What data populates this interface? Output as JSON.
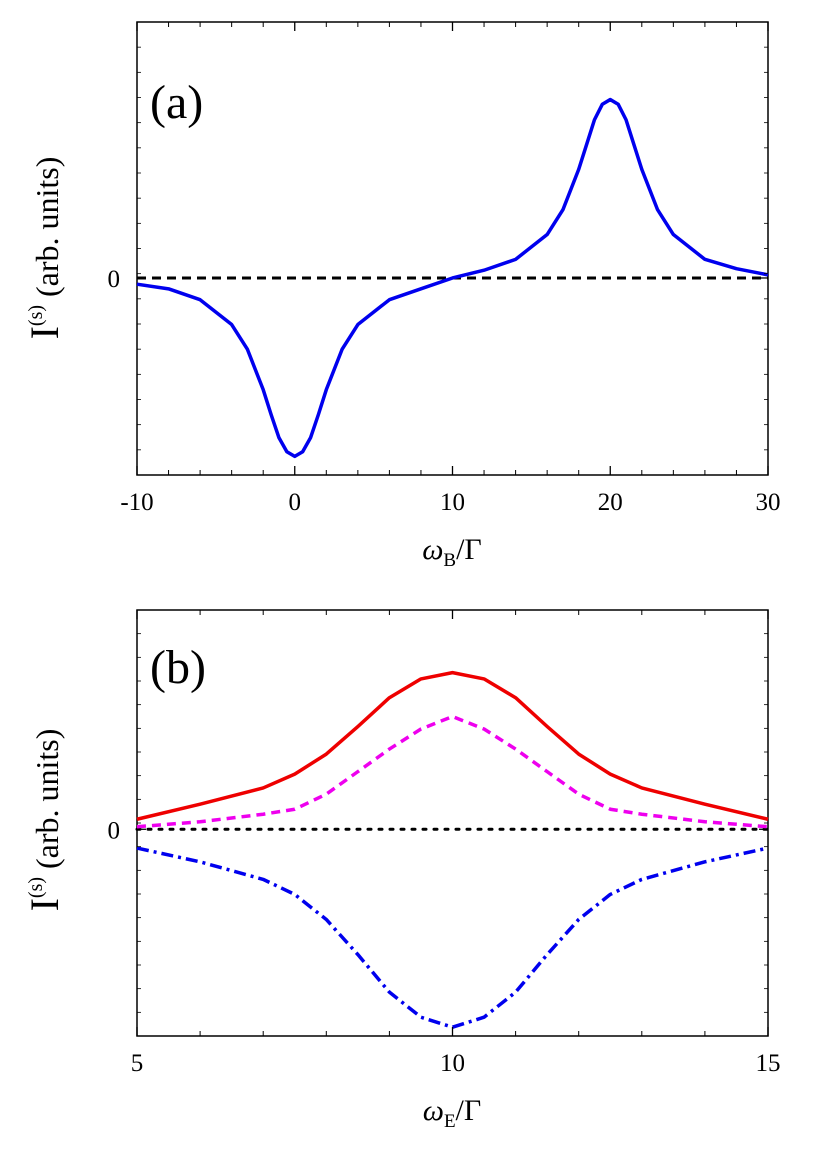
{
  "chart_data": [
    {
      "type": "line",
      "panel_label": "(a)",
      "xlabel": {
        "symbol": "ω",
        "subscript": "B",
        "suffix": "/Γ"
      },
      "ylabel": {
        "main": "I",
        "superscript": "(s)",
        "suffix": " (arb. units)"
      },
      "xlim": [
        -10,
        30
      ],
      "ylim": [
        -1.27,
        1.65
      ],
      "x_ticks": [
        -10,
        0,
        10,
        20,
        30
      ],
      "y_ticks": [
        0
      ],
      "grid": false,
      "series": [
        {
          "style": "solid",
          "color": "#0000ee",
          "x": [
            -10,
            -8,
            -6,
            -4,
            -3,
            -2,
            -1.5,
            -1,
            -0.5,
            0,
            0.5,
            1,
            1.5,
            2,
            3,
            4,
            6,
            8,
            10,
            12,
            14,
            16,
            17,
            18,
            18.5,
            19,
            19.5,
            20,
            20.5,
            21,
            21.5,
            22,
            23,
            24,
            26,
            28,
            30
          ],
          "y": [
            -0.04,
            -0.07,
            -0.14,
            -0.3,
            -0.46,
            -0.72,
            -0.88,
            -1.03,
            -1.12,
            -1.15,
            -1.12,
            -1.03,
            -0.88,
            -0.72,
            -0.46,
            -0.3,
            -0.14,
            -0.07,
            0.0,
            0.05,
            0.12,
            0.28,
            0.44,
            0.7,
            0.86,
            1.02,
            1.12,
            1.15,
            1.12,
            1.02,
            0.86,
            0.7,
            0.44,
            0.28,
            0.12,
            0.06,
            0.02
          ]
        },
        {
          "style": "dashed",
          "color": "#000000",
          "x": [
            -10,
            30
          ],
          "y": [
            0,
            0
          ]
        }
      ]
    },
    {
      "type": "line",
      "panel_label": "(b)",
      "xlabel": {
        "symbol": "ω",
        "subscript": "E",
        "suffix": "/Γ"
      },
      "ylabel": {
        "main": "I",
        "superscript": "(s)",
        "suffix": " (arb. units)"
      },
      "xlim": [
        5,
        15
      ],
      "ylim": [
        -1.65,
        1.75
      ],
      "x_ticks": [
        5,
        10,
        15
      ],
      "y_ticks": [
        0
      ],
      "grid": false,
      "series": [
        {
          "style": "solid",
          "color": "#ee0000",
          "x": [
            5,
            6,
            7,
            7.5,
            8,
            8.5,
            9,
            9.5,
            10,
            10.5,
            11,
            11.5,
            12,
            12.5,
            13,
            14,
            15
          ],
          "y": [
            0.08,
            0.2,
            0.33,
            0.44,
            0.6,
            0.82,
            1.05,
            1.2,
            1.25,
            1.2,
            1.05,
            0.82,
            0.6,
            0.44,
            0.33,
            0.2,
            0.08
          ]
        },
        {
          "style": "dashed",
          "color": "#ee00ee",
          "x": [
            5,
            6,
            7,
            7.5,
            8,
            8.5,
            9,
            9.5,
            10,
            10.5,
            11,
            11.5,
            12,
            12.5,
            13,
            14,
            15
          ],
          "y": [
            0.02,
            0.06,
            0.12,
            0.16,
            0.28,
            0.46,
            0.64,
            0.8,
            0.9,
            0.8,
            0.64,
            0.46,
            0.28,
            0.16,
            0.12,
            0.06,
            0.02
          ]
        },
        {
          "style": "dashdot",
          "color": "#0000ee",
          "x": [
            5,
            6,
            7,
            7.5,
            8,
            8.5,
            9,
            9.5,
            10,
            10.5,
            11,
            11.5,
            12,
            12.5,
            13,
            14,
            15
          ],
          "y": [
            -0.15,
            -0.26,
            -0.4,
            -0.52,
            -0.72,
            -1.0,
            -1.3,
            -1.5,
            -1.58,
            -1.5,
            -1.3,
            -1.0,
            -0.72,
            -0.52,
            -0.4,
            -0.26,
            -0.15
          ]
        },
        {
          "style": "dotted",
          "color": "#000000",
          "x": [
            5,
            15
          ],
          "y": [
            0,
            0
          ]
        }
      ]
    }
  ]
}
